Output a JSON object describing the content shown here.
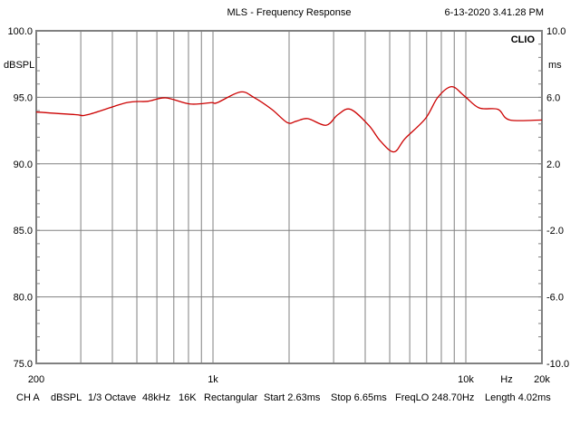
{
  "chart_data": {
    "type": "line",
    "title": "MLS - Frequency Response",
    "timestamp": "6-13-2020 3.41.28 PM",
    "brand": "CLIO",
    "xlabel": "Hz",
    "ylabel": "dBSPL",
    "y2label": "ms",
    "xscale": "log",
    "xlim": [
      200,
      20000
    ],
    "ylim": [
      75,
      100
    ],
    "y2lim": [
      -10,
      10
    ],
    "grid": true,
    "x_tick_labels": [
      {
        "value": 200,
        "label": "200"
      },
      {
        "value": 1000,
        "label": "1k"
      },
      {
        "value": 10000,
        "label": "10k"
      },
      {
        "value": 20000,
        "label": "20k"
      }
    ],
    "x_gridlines": [
      300,
      400,
      500,
      600,
      700,
      800,
      900,
      1000,
      2000,
      3000,
      4000,
      5000,
      6000,
      7000,
      8000,
      9000,
      10000
    ],
    "y_ticks": [
      {
        "value": 100,
        "label": "100.0"
      },
      {
        "value": 95,
        "label": "95.0"
      },
      {
        "value": 90,
        "label": "90.0"
      },
      {
        "value": 85,
        "label": "85.0"
      },
      {
        "value": 80,
        "label": "80.0"
      },
      {
        "value": 75,
        "label": "75.0"
      }
    ],
    "y2_ticks": [
      {
        "value": 10,
        "label": "10.0"
      },
      {
        "value": 6,
        "label": "6.0"
      },
      {
        "value": 2,
        "label": "2.0"
      },
      {
        "value": -2,
        "label": "-2.0"
      },
      {
        "value": -6,
        "label": "-6.0"
      },
      {
        "value": -10,
        "label": "-10.0"
      }
    ],
    "series": [
      {
        "name": "CH A",
        "color": "#cc0000",
        "x": [
          200,
          285,
          320,
          456,
          552,
          650,
          812,
          985,
          1040,
          1282,
          1450,
          1708,
          1968,
          2130,
          2370,
          2800,
          3120,
          3500,
          4130,
          4600,
          5200,
          5750,
          6920,
          7750,
          8780,
          9870,
          11300,
          13400,
          14900,
          20000
        ],
        "y": [
          93.9,
          93.7,
          93.7,
          94.6,
          94.7,
          94.96,
          94.5,
          94.6,
          94.6,
          95.4,
          95.0,
          94.1,
          93.1,
          93.2,
          93.4,
          92.9,
          93.7,
          94.1,
          92.9,
          91.7,
          90.9,
          91.9,
          93.4,
          95.0,
          95.8,
          95.1,
          94.2,
          94.1,
          93.3,
          93.3
        ]
      }
    ]
  },
  "footer": {
    "channel": "CH A",
    "units": "dBSPL",
    "smoothing": "1/3 Octave",
    "sample_rate": "48kHz",
    "size": "16K",
    "window": "Rectangular",
    "start": "Start 2.63ms",
    "stop": "Stop 6.65ms",
    "freqlo": "FreqLO 248.70Hz",
    "length": "Length 4.02ms"
  }
}
